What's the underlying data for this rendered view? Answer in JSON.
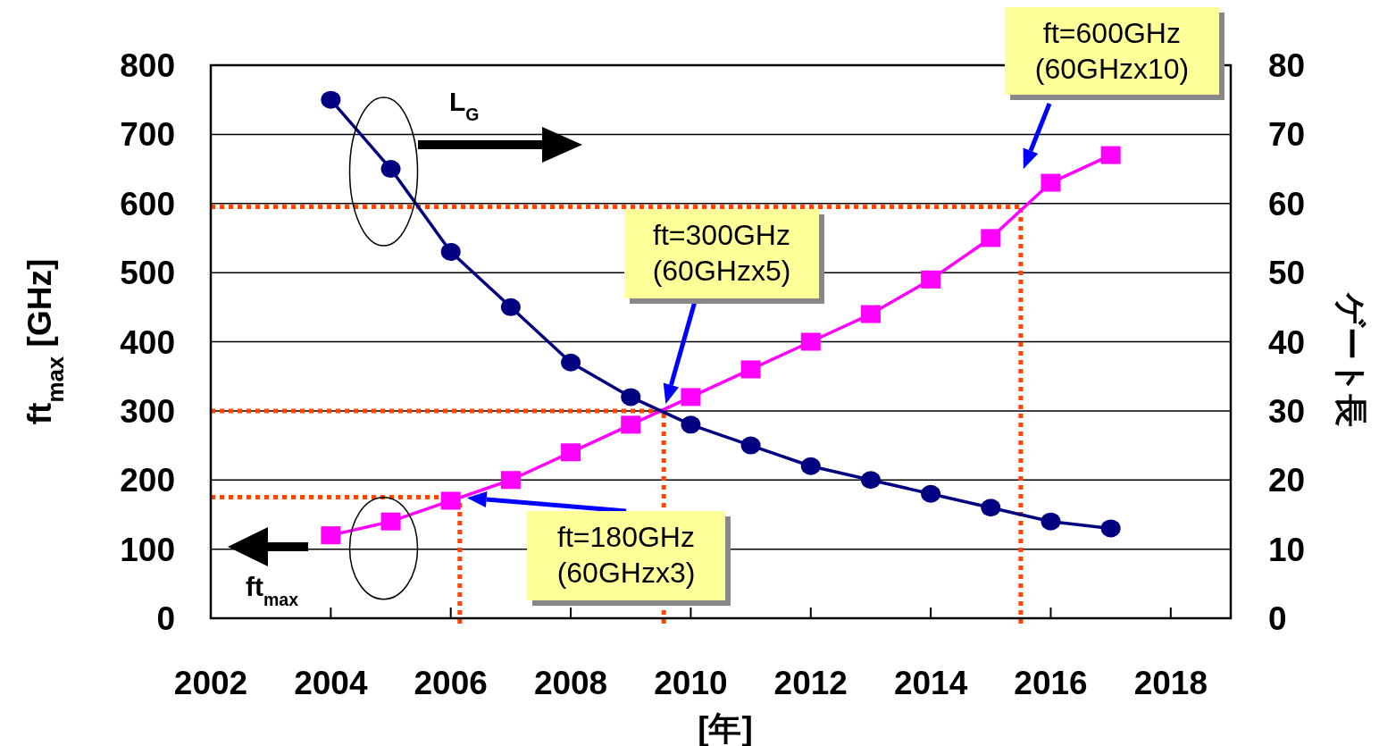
{
  "chart_data": {
    "type": "line",
    "xlabel": "[年]",
    "ylabel": "ft$_{max}$ [GHz]",
    "y2label": "ゲート長",
    "x": [
      2004,
      2005,
      2006,
      2007,
      2008,
      2009,
      2010,
      2011,
      2012,
      2013,
      2014,
      2015,
      2016,
      2017
    ],
    "series": [
      {
        "name": "ft$_{max}$",
        "color": "#ff00ff",
        "marker": "square",
        "values": [
          120,
          140,
          170,
          200,
          240,
          280,
          320,
          360,
          400,
          440,
          490,
          550,
          630,
          670
        ]
      },
      {
        "name": "L$_{G}$",
        "color": "#000080",
        "marker": "circle",
        "axis": "y2",
        "values": [
          75,
          65,
          53,
          45,
          37,
          32,
          28,
          25,
          22,
          20,
          18,
          16,
          14,
          13
        ]
      }
    ],
    "xlim": [
      2002,
      2019
    ],
    "xticks": [
      2002,
      2004,
      2006,
      2008,
      2010,
      2012,
      2014,
      2016,
      2018
    ],
    "ylim": [
      0,
      800
    ],
    "yticks": [
      0,
      100,
      200,
      300,
      400,
      500,
      600,
      700,
      800
    ],
    "y2lim": [
      0,
      80
    ],
    "y2ticks": [
      0,
      10,
      20,
      30,
      40,
      50,
      60,
      70,
      80
    ],
    "grid": "y",
    "legend": false,
    "ref_lines": [
      {
        "axis": "y",
        "value": 595,
        "color": "#ff4500",
        "line_style": "dotted"
      },
      {
        "axis": "y",
        "value": 300,
        "color": "#ff4500",
        "line_style": "dotted"
      },
      {
        "axis": "y",
        "value": 175,
        "color": "#ff4500",
        "line_style": "dotted"
      },
      {
        "axis": "x",
        "value": 2015.5,
        "color": "#ff4500",
        "line_style": "dotted"
      },
      {
        "axis": "x",
        "value": 2009.55,
        "color": "#ff4500",
        "line_style": "dotted"
      },
      {
        "axis": "x",
        "value": 2006.15,
        "color": "#ff4500",
        "line_style": "dotted"
      }
    ],
    "annotations": [
      "ft=600GHz (60GHzx10)",
      "ft=300GHz (60GHzx5)",
      "ft=180GHz (60GHzx3)"
    ]
  }
}
